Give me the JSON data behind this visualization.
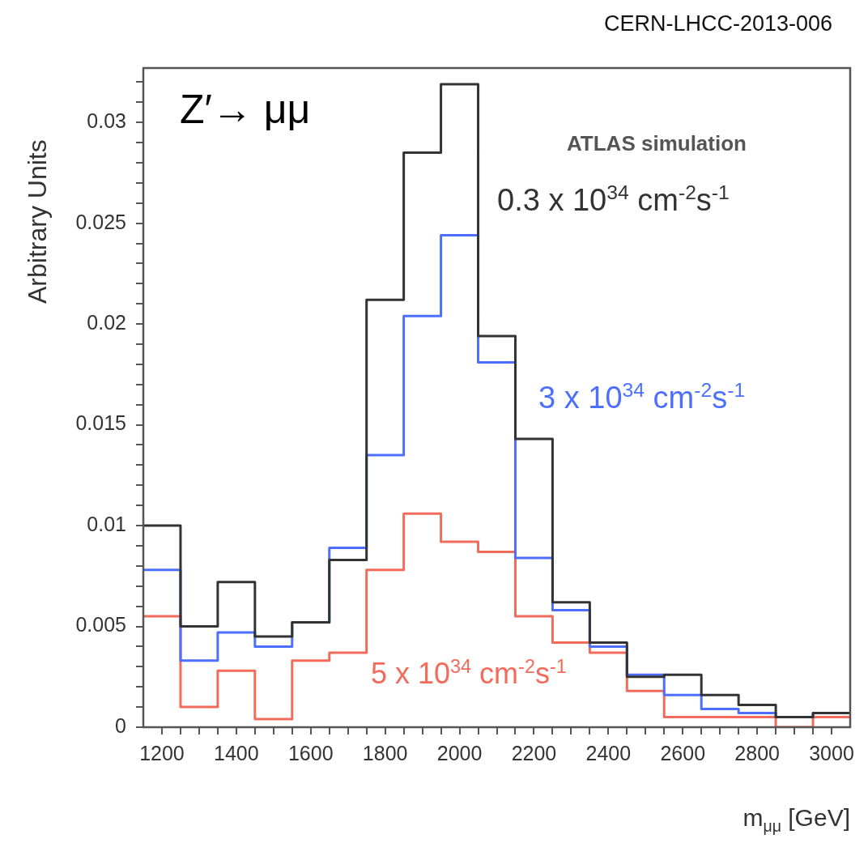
{
  "chart_data": {
    "type": "histogram",
    "xlabel": "m$_{μμ}$ [GeV]",
    "ylabel": "Arbitrary Units",
    "annotations": [
      "CERN-LHCC-2013-006",
      "Z′→ μμ",
      "ATLAS simulation"
    ],
    "bins": [
      1150,
      1250,
      1350,
      1450,
      1550,
      1650,
      1750,
      1850,
      1950,
      2050,
      2150,
      2250,
      2350,
      2450,
      2550,
      2650,
      2750,
      2850,
      2950,
      3050
    ],
    "series": [
      {
        "name": "0.3 x 10$^{34}$ cm$^{-2}$s$^{-1}$",
        "color": "#333333",
        "values": [
          0.01,
          0.005,
          0.0072,
          0.0045,
          0.0052,
          0.0083,
          0.0212,
          0.0285,
          0.0319,
          0.0194,
          0.0143,
          0.0062,
          0.0042,
          0.0025,
          0.0026,
          0.0016,
          0.0011,
          0.0005,
          0.0007
        ]
      },
      {
        "name": "3 x 10$^{34}$ cm$^{-2}$s$^{-1}$",
        "color": "#4d6fff",
        "values": [
          0.0078,
          0.0033,
          0.0047,
          0.004,
          0.0052,
          0.0089,
          0.0135,
          0.0204,
          0.0244,
          0.0181,
          0.0084,
          0.0058,
          0.004,
          0.0026,
          0.0016,
          0.0009,
          0.0007,
          0.0005,
          0.0007
        ]
      },
      {
        "name": "5 x 10$^{34}$ cm$^{-2}$s$^{-1}$",
        "color": "#f26b5b",
        "values": [
          0.0055,
          0.001,
          0.0028,
          0.0004,
          0.0033,
          0.0037,
          0.0078,
          0.0106,
          0.0092,
          0.0087,
          0.0055,
          0.0042,
          0.0037,
          0.0018,
          0.0005,
          0.0005,
          0.0005,
          0.0,
          0.0005
        ]
      }
    ],
    "xlim": [
      1150,
      3050
    ],
    "xticks": [
      1200,
      {
        "value": 1250,
        "label": null
      },
      {
        "value": 1300,
        "label": null
      },
      {
        "value": 1350,
        "label": null
      },
      1400,
      {
        "value": 1450,
        "label": null
      },
      {
        "value": 1500,
        "label": null
      },
      {
        "value": 1550,
        "label": null
      },
      1600,
      {
        "value": 1650,
        "label": null
      },
      {
        "value": 1700,
        "label": null
      },
      {
        "value": 1750,
        "label": null
      },
      1800,
      {
        "value": 1850,
        "label": null
      },
      {
        "value": 1900,
        "label": null
      },
      {
        "value": 1950,
        "label": null
      },
      2000,
      {
        "value": 2050,
        "label": null
      },
      {
        "value": 2100,
        "label": null
      },
      {
        "value": 2150,
        "label": null
      },
      2200,
      {
        "value": 2250,
        "label": null
      },
      {
        "value": 2300,
        "label": null
      },
      {
        "value": 2350,
        "label": null
      },
      2400,
      {
        "value": 2450,
        "label": null
      },
      {
        "value": 2500,
        "label": null
      },
      {
        "value": 2550,
        "label": null
      },
      2600,
      {
        "value": 2650,
        "label": null
      },
      {
        "value": 2700,
        "label": null
      },
      {
        "value": 2750,
        "label": null
      },
      2800,
      {
        "value": 2850,
        "label": null
      },
      {
        "value": 2900,
        "label": null
      },
      {
        "value": 2950,
        "label": null
      },
      3000
    ],
    "ylim": [
      0,
      0.0327
    ],
    "yticks": [
      0,
      {
        "value": 0.001,
        "label": null
      },
      {
        "value": 0.002,
        "label": null
      },
      {
        "value": 0.003,
        "label": null
      },
      {
        "value": 0.004,
        "label": null
      },
      0.005,
      {
        "value": 0.006,
        "label": null
      },
      {
        "value": 0.007,
        "label": null
      },
      {
        "value": 0.008,
        "label": null
      },
      {
        "value": 0.009,
        "label": null
      },
      0.01,
      {
        "value": 0.011,
        "label": null
      },
      {
        "value": 0.012,
        "label": null
      },
      {
        "value": 0.013,
        "label": null
      },
      {
        "value": 0.014,
        "label": null
      },
      0.015,
      {
        "value": 0.016,
        "label": null
      },
      {
        "value": 0.017,
        "label": null
      },
      {
        "value": 0.018,
        "label": null
      },
      {
        "value": 0.019,
        "label": null
      },
      0.02,
      {
        "value": 0.021,
        "label": null
      },
      {
        "value": 0.022,
        "label": null
      },
      {
        "value": 0.023,
        "label": null
      },
      {
        "value": 0.024,
        "label": null
      },
      0.025,
      {
        "value": 0.026,
        "label": null
      },
      {
        "value": 0.027,
        "label": null
      },
      {
        "value": 0.028,
        "label": null
      },
      {
        "value": 0.029,
        "label": null
      },
      0.03,
      {
        "value": 0.031,
        "label": null
      },
      {
        "value": 0.032,
        "label": null
      }
    ],
    "grid": false
  }
}
